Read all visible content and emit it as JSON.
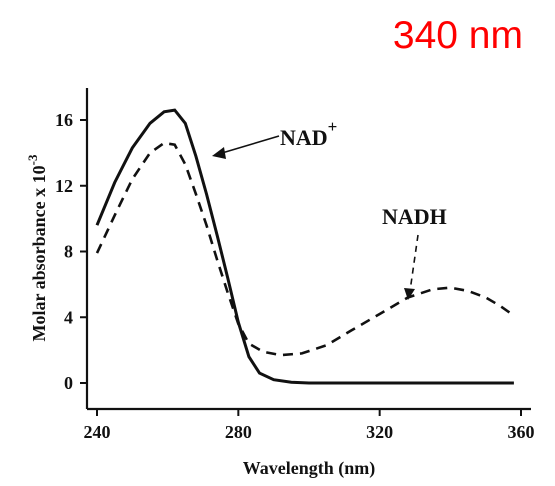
{
  "annotation": "340 nm",
  "chart_data": {
    "type": "line",
    "xlabel": "Wavelength (nm)",
    "ylabel": "Molar absorbance x 10",
    "ylabel_superscript": "-3",
    "xlim": [
      240,
      360
    ],
    "ylim": [
      0,
      16
    ],
    "x_ticks": [
      "240",
      "280",
      "320",
      "360"
    ],
    "y_ticks": [
      "0",
      "4",
      "8",
      "12",
      "16"
    ],
    "grid": false,
    "series": [
      {
        "name": "NAD",
        "name_superscript": "+",
        "line_style": "solid",
        "color": "#111111",
        "points": [
          [
            240,
            9.6
          ],
          [
            245,
            12.2
          ],
          [
            250,
            14.3
          ],
          [
            255,
            15.8
          ],
          [
            259,
            16.5
          ],
          [
            262,
            16.6
          ],
          [
            265,
            15.8
          ],
          [
            268,
            13.8
          ],
          [
            271,
            11.5
          ],
          [
            274,
            9.0
          ],
          [
            277,
            6.4
          ],
          [
            280,
            3.7
          ],
          [
            283,
            1.6
          ],
          [
            286,
            0.6
          ],
          [
            290,
            0.2
          ],
          [
            295,
            0.05
          ],
          [
            300,
            0
          ],
          [
            320,
            0
          ],
          [
            340,
            0
          ],
          [
            358,
            0
          ]
        ]
      },
      {
        "name": "NADH",
        "line_style": "dashed",
        "color": "#111111",
        "points": [
          [
            240,
            7.9
          ],
          [
            245,
            10.2
          ],
          [
            250,
            12.4
          ],
          [
            255,
            14.0
          ],
          [
            259,
            14.6
          ],
          [
            262,
            14.5
          ],
          [
            265,
            13.3
          ],
          [
            268,
            11.5
          ],
          [
            271,
            9.6
          ],
          [
            274,
            7.5
          ],
          [
            277,
            5.5
          ],
          [
            280,
            3.6
          ],
          [
            283,
            2.4
          ],
          [
            287,
            1.9
          ],
          [
            292,
            1.7
          ],
          [
            298,
            1.8
          ],
          [
            305,
            2.3
          ],
          [
            312,
            3.2
          ],
          [
            320,
            4.2
          ],
          [
            328,
            5.2
          ],
          [
            335,
            5.7
          ],
          [
            340,
            5.8
          ],
          [
            345,
            5.6
          ],
          [
            350,
            5.2
          ],
          [
            354,
            4.7
          ],
          [
            358,
            4.1
          ]
        ]
      }
    ]
  }
}
